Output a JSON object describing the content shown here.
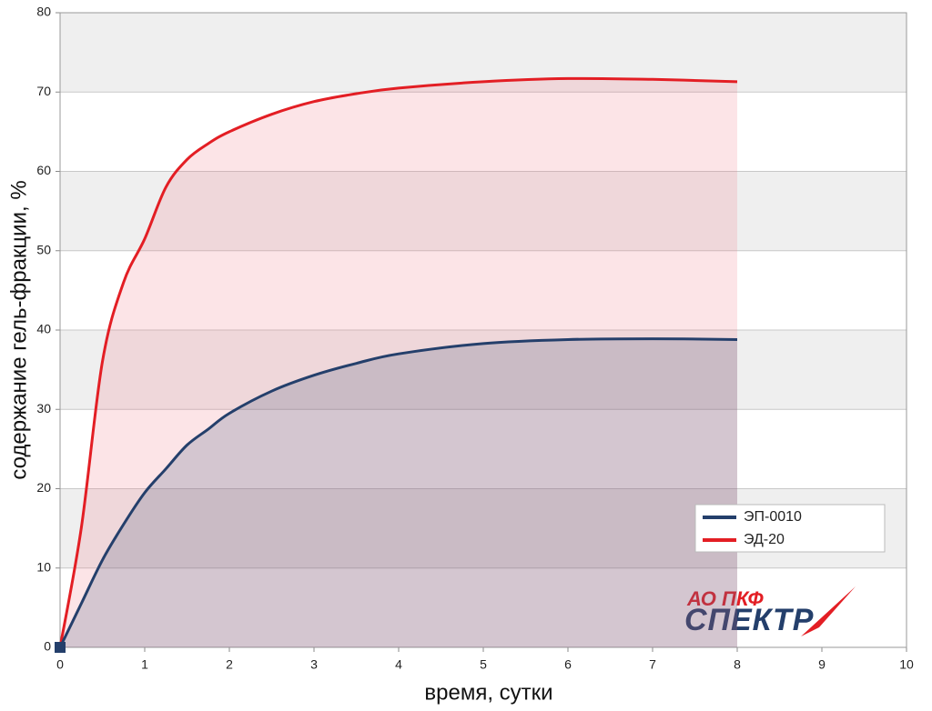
{
  "chart_data": {
    "type": "line",
    "xlabel": "время, сутки",
    "ylabel": "содержание гель-фракции, %",
    "x": [
      0,
      0.25,
      0.5,
      0.75,
      1,
      1.25,
      1.5,
      1.75,
      2,
      2.5,
      3,
      3.5,
      4,
      5,
      6,
      7,
      8
    ],
    "series": [
      {
        "name": "ЭП-0010",
        "color": "#243f6b",
        "fill": "rgba(36,63,107,0.18)",
        "values": [
          0,
          5.5,
          11,
          15.5,
          19.5,
          22.5,
          25.5,
          27.5,
          29.5,
          32.3,
          34.3,
          35.8,
          37,
          38.3,
          38.8,
          38.9,
          38.8
        ]
      },
      {
        "name": "ЭД-20",
        "color": "#e31e24",
        "fill": "rgba(240,120,135,0.2)",
        "values": [
          0,
          15,
          36,
          46,
          51.5,
          58,
          61.5,
          63.5,
          65,
          67.2,
          68.8,
          69.8,
          70.5,
          71.3,
          71.7,
          71.6,
          71.3
        ]
      }
    ],
    "xlim": [
      0,
      10
    ],
    "ylim": [
      0,
      80
    ],
    "xticks": [
      0,
      1,
      2,
      3,
      4,
      5,
      6,
      7,
      8,
      9,
      10
    ],
    "yticks": [
      0,
      10,
      20,
      30,
      40,
      50,
      60,
      70,
      80
    ],
    "grid": true,
    "legend": "lower-right",
    "logo": {
      "line1": "АО ПКФ",
      "line2": "СПЕКТР"
    }
  }
}
